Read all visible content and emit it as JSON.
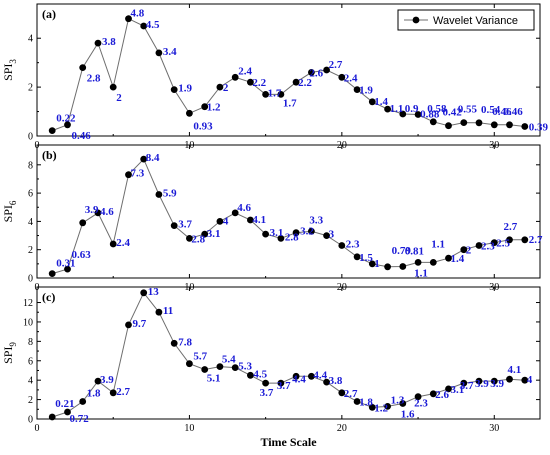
{
  "chart_data": [
    {
      "type": "line",
      "panel_label": "(a)",
      "ylabel_main": "SPI",
      "ylabel_sub": "3",
      "legend": "Wavelet Variance",
      "legend_position": "top-right",
      "xlim": [
        0,
        33
      ],
      "xticks": [
        0,
        10,
        20,
        30
      ],
      "ylim": [
        0,
        5.4
      ],
      "yticks": [
        0,
        2,
        4
      ],
      "series": [
        {
          "x": [
            1,
            2,
            3,
            4,
            5,
            6,
            7,
            8,
            9,
            10,
            11,
            12,
            13,
            14,
            15,
            16,
            17,
            18,
            19,
            20,
            21,
            22,
            23,
            24,
            25,
            26,
            27,
            28,
            29,
            30,
            31,
            32
          ],
          "y": [
            0.22,
            0.46,
            2.8,
            3.8,
            2,
            4.8,
            4.5,
            3.4,
            1.9,
            0.93,
            1.2,
            2,
            2.4,
            2.2,
            1.7,
            1.7,
            2.2,
            2.6,
            2.7,
            2.4,
            1.9,
            1.4,
            1.1,
            0.9,
            0.88,
            0.58,
            0.42,
            0.55,
            0.54,
            0.46,
            0.46,
            0.39
          ],
          "labels": [
            "0.22",
            "0.46",
            "2.8",
            "3.8",
            "2",
            "4.8",
            "4.5",
            "3.4",
            "1.9",
            "0.93",
            "1.2",
            "2",
            "2.4",
            "2.2",
            "1.7",
            "1.7",
            "2.2",
            "2.6",
            "2.7",
            "2.4",
            "1.9",
            "1.4",
            "1.1",
            "0.9",
            "0.88",
            "0.58",
            "0.42",
            "0.55",
            "0.54",
            "0.46",
            "0.46",
            "0.39"
          ]
        }
      ]
    },
    {
      "type": "line",
      "panel_label": "(b)",
      "ylabel_main": "SPI",
      "ylabel_sub": "6",
      "xlim": [
        0,
        33
      ],
      "xticks": [
        0,
        10,
        20,
        30
      ],
      "ylim": [
        0,
        9.4
      ],
      "yticks": [
        0,
        2,
        4,
        6,
        8
      ],
      "series": [
        {
          "x": [
            1,
            2,
            3,
            4,
            5,
            6,
            7,
            8,
            9,
            10,
            11,
            12,
            13,
            14,
            15,
            16,
            17,
            18,
            19,
            20,
            21,
            22,
            23,
            24,
            25,
            26,
            27,
            28,
            29,
            30,
            31,
            32
          ],
          "y": [
            0.31,
            0.63,
            3.9,
            4.6,
            2.4,
            7.3,
            8.4,
            5.9,
            3.7,
            2.8,
            3.1,
            4,
            4.6,
            4.1,
            3.1,
            2.8,
            3.2,
            3.3,
            3,
            2.3,
            1.5,
            1,
            0.79,
            0.81,
            1.1,
            1.1,
            1.4,
            2,
            2.3,
            2.5,
            2.7,
            2.7
          ],
          "labels": [
            "0.31",
            "0.63",
            "3.9",
            "4.6",
            "2.4",
            "7.3",
            "8.4",
            "5.9",
            "3.7",
            "2.8",
            "3.1",
            "4",
            "4.6",
            "4.1",
            "3.1",
            "2.8",
            "3.2",
            "3.3",
            "3",
            "2.3",
            "1.5",
            "1",
            "0.79",
            "0.81",
            "1.1",
            "1.1",
            "1.4",
            "2",
            "2.3",
            "2.5",
            "2.7",
            "2.7"
          ]
        }
      ]
    },
    {
      "type": "line",
      "panel_label": "(c)",
      "ylabel_main": "SPI",
      "ylabel_sub": "9",
      "xlabel": "Time Scale",
      "xlim": [
        0,
        33
      ],
      "xticks": [
        0,
        10,
        20,
        30
      ],
      "ylim": [
        0,
        13.6
      ],
      "yticks": [
        0,
        2,
        4,
        6,
        8,
        10,
        12
      ],
      "series": [
        {
          "x": [
            1,
            2,
            3,
            4,
            5,
            6,
            7,
            8,
            9,
            10,
            11,
            12,
            13,
            14,
            15,
            16,
            17,
            18,
            19,
            20,
            21,
            22,
            23,
            24,
            25,
            26,
            27,
            28,
            29,
            30,
            31,
            32
          ],
          "y": [
            0.21,
            0.72,
            1.8,
            3.9,
            2.7,
            9.7,
            13,
            11,
            7.8,
            5.7,
            5.1,
            5.4,
            5.3,
            4.5,
            3.7,
            3.7,
            4.4,
            4.4,
            3.8,
            2.7,
            1.8,
            1.2,
            1.3,
            1.6,
            2.3,
            2.6,
            3.1,
            3.7,
            3.9,
            3.9,
            4.1,
            4
          ],
          "labels": [
            "0.21",
            "0.72",
            "1.8",
            "3.9",
            "2.7",
            "9.7",
            "13",
            "11",
            "7.8",
            "5.7",
            "5.1",
            "5.4",
            "5.3",
            "4.5",
            "3.7",
            "3.7",
            "4.4",
            "4.4",
            "3.8",
            "2.7",
            "1.8",
            "1.2",
            "1.3",
            "1.6",
            "2.3",
            "2.6",
            "3.1",
            "3.7",
            "3.9",
            "3.9",
            "4.1",
            "4"
          ]
        }
      ]
    }
  ]
}
